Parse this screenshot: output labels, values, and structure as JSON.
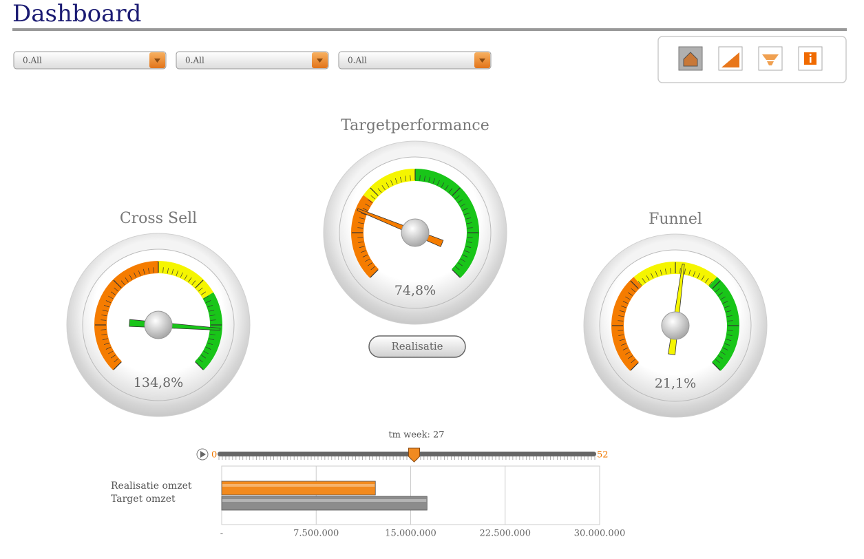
{
  "header": {
    "title": "Dashboard"
  },
  "filters": [
    "0.All",
    "0.All",
    "0.All"
  ],
  "gauges": [
    {
      "title": "Cross Sell",
      "value": 134.8,
      "value_label": "134,8%",
      "range": [
        50,
        150
      ],
      "bands": [
        {
          "from": 50,
          "to": 100,
          "color": "#f57c00"
        },
        {
          "from": 100,
          "to": 122,
          "color": "#f5f500"
        },
        {
          "from": 122,
          "to": 150,
          "color": "#19c519"
        }
      ]
    },
    {
      "title": "Targetperformance",
      "value": 74.8,
      "value_label": "74,8%",
      "range": [
        50,
        150
      ],
      "bands": [
        {
          "from": 50,
          "to": 80,
          "color": "#f57c00"
        },
        {
          "from": 80,
          "to": 100,
          "color": "#f5f500"
        },
        {
          "from": 100,
          "to": 150,
          "color": "#19c519"
        }
      ]
    },
    {
      "title": "Funnel",
      "value": 21.1,
      "value_label": "21,1%",
      "range": [
        0,
        40
      ],
      "bands": [
        {
          "from": 0,
          "to": 14,
          "color": "#f57c00"
        },
        {
          "from": 14,
          "to": 26,
          "color": "#f5f500"
        },
        {
          "from": 26,
          "to": 40,
          "color": "#19c519"
        }
      ]
    }
  ],
  "button": "Realisatie",
  "slider": {
    "label": "tm week: 27",
    "min": 0,
    "max": 52,
    "value": 27
  },
  "chart_data": {
    "type": "bar",
    "orientation": "horizontal",
    "categories": [
      "Realisatie omzet",
      "Target omzet"
    ],
    "values": [
      12200000,
      16300000
    ],
    "colors": [
      "#f28a1e",
      "#8c8c8c"
    ],
    "xlim": [
      0,
      30000000
    ],
    "xticks": [
      {
        "value": 0,
        "label": "-"
      },
      {
        "value": 7500000,
        "label": "7.500.000"
      },
      {
        "value": 15000000,
        "label": "15.000.000"
      },
      {
        "value": 22500000,
        "label": "22.500.000"
      },
      {
        "value": 30000000,
        "label": "30.000.000"
      }
    ],
    "grid": true
  }
}
